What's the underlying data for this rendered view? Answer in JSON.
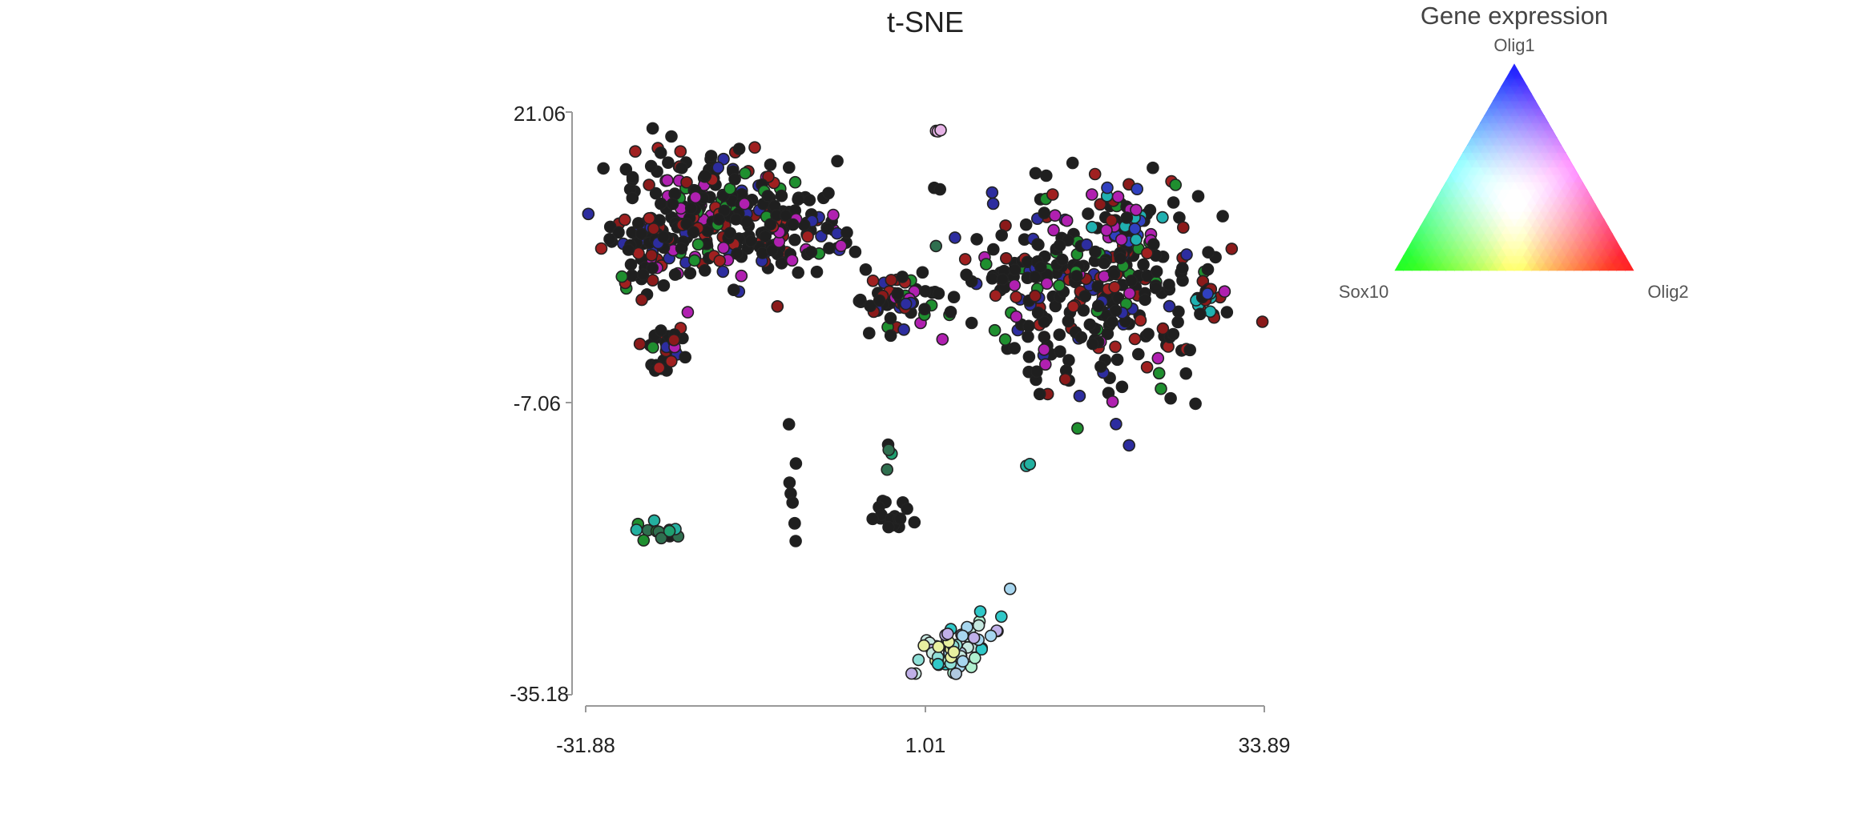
{
  "chart_data": {
    "type": "scatter",
    "title": "t-SNE",
    "xlabel": "",
    "ylabel": "",
    "xlim": [
      -31.88,
      33.89
    ],
    "ylim": [
      -35.18,
      21.06
    ],
    "x_ticks": [
      "-31.88",
      "1.01",
      "33.89"
    ],
    "y_ticks": [
      "21.06",
      "-7.06",
      "-35.18"
    ],
    "grid": false,
    "point_outline_color": "#222222",
    "default_point_color": "#1f1f1f",
    "legend": {
      "title": "Gene expression",
      "placement": "top-right",
      "type": "ternary color triangle",
      "vertices": [
        {
          "label": "Olig1",
          "color": "#2020ff"
        },
        {
          "label": "Sox10",
          "color": "#20ff20"
        },
        {
          "label": "Olig2",
          "color": "#ff2020"
        }
      ]
    },
    "clusters": [
      {
        "id": "upper-left-arc",
        "cx": -19.5,
        "cy": 11.5,
        "sx": 4.8,
        "sy": 3.2,
        "n": 260,
        "tilt": -0.25
      },
      {
        "id": "left-lobe",
        "cx": -25.5,
        "cy": 7.0,
        "sx": 2.0,
        "sy": 2.0,
        "n": 50
      },
      {
        "id": "left-tail",
        "cx": -24.5,
        "cy": -2.0,
        "sx": 1.2,
        "sy": 1.4,
        "n": 30
      },
      {
        "id": "bridge-left",
        "cx": -11.0,
        "cy": 10.0,
        "sx": 3.0,
        "sy": 1.2,
        "n": 45,
        "tilt": -0.3
      },
      {
        "id": "center-small",
        "cx": -1.5,
        "cy": 3.0,
        "sx": 2.0,
        "sy": 1.5,
        "n": 60
      },
      {
        "id": "right-blob",
        "cx": 17.0,
        "cy": 4.5,
        "sx": 5.5,
        "sy": 4.8,
        "n": 330
      },
      {
        "id": "right-upper-edge",
        "cx": 21.5,
        "cy": 10.5,
        "sx": 2.0,
        "sy": 1.4,
        "n": 30
      },
      {
        "id": "far-right",
        "cx": 28.5,
        "cy": 3.5,
        "sx": 1.0,
        "sy": 0.9,
        "n": 22
      },
      {
        "id": "top-spot",
        "cx": 2.5,
        "cy": 19.2,
        "sx": 0.35,
        "sy": 0.15,
        "n": 3
      },
      {
        "id": "pair-upper",
        "cx": 3.0,
        "cy": 13.7,
        "sx": 0.6,
        "sy": 0.15,
        "n": 2
      },
      {
        "id": "single-mid",
        "cx": 2.4,
        "cy": 8.0,
        "sx": 0.2,
        "sy": 0.2,
        "n": 1
      },
      {
        "id": "lower-left",
        "cx": -24.8,
        "cy": -19.5,
        "sx": 1.0,
        "sy": 0.6,
        "n": 14
      },
      {
        "id": "lower-mid-col",
        "cx": -11.8,
        "cy": -16.5,
        "sx": 0.3,
        "sy": 2.5,
        "n": 8
      },
      {
        "id": "lower-center",
        "cx": -2.2,
        "cy": -17.5,
        "sx": 0.9,
        "sy": 0.8,
        "n": 16
      },
      {
        "id": "lower-center-up",
        "cx": -2.5,
        "cy": -12.0,
        "sx": 0.3,
        "sy": 1.2,
        "n": 4
      },
      {
        "id": "mid-right-dot",
        "cx": 11.0,
        "cy": -13.0,
        "sx": 0.2,
        "sy": 0.2,
        "n": 2
      },
      {
        "id": "bottom-cluster",
        "cx": 4.5,
        "cy": -30.5,
        "sx": 2.2,
        "sy": 1.2,
        "n": 65,
        "tilt": 0.35
      }
    ]
  }
}
